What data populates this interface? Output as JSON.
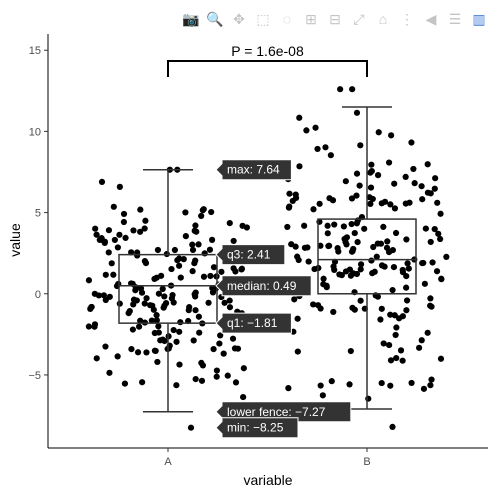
{
  "modebar": {
    "buttons": [
      {
        "name": "camera-icon",
        "glyph": "📷",
        "active": false
      },
      {
        "name": "zoom-icon",
        "glyph": "🔍",
        "active": true
      },
      {
        "name": "pan-icon",
        "glyph": "✥",
        "active": false
      },
      {
        "name": "box-select-icon",
        "glyph": "⬚",
        "active": false
      },
      {
        "name": "lasso-select-icon",
        "glyph": "◌",
        "active": false
      },
      {
        "name": "zoom-in-icon",
        "glyph": "⊞",
        "active": false
      },
      {
        "name": "zoom-out-icon",
        "glyph": "⊟",
        "active": false
      },
      {
        "name": "autoscale-icon",
        "glyph": "⤢",
        "active": false
      },
      {
        "name": "reset-axes-icon",
        "glyph": "⌂",
        "active": false
      },
      {
        "name": "spike-lines-icon",
        "glyph": "⋮",
        "active": false
      },
      {
        "name": "hover-closest-icon",
        "glyph": "◀",
        "active": false
      },
      {
        "name": "hover-compare-icon",
        "glyph": "☰",
        "active": false
      },
      {
        "name": "plotly-logo-icon",
        "glyph": "▥",
        "active": false,
        "brand": true
      }
    ]
  },
  "chart_data": {
    "type": "box",
    "xlabel": "variable",
    "ylabel": "value",
    "categories": [
      "A",
      "B"
    ],
    "ylim": [
      -9.5,
      16
    ],
    "yticks": [
      -5,
      0,
      5,
      10,
      15
    ],
    "annotation": {
      "label": "P = 1.6e-08"
    },
    "boxes": [
      {
        "category": "A",
        "min": -8.25,
        "lower_fence": -7.27,
        "q1": -1.81,
        "median": 0.49,
        "q3": 2.41,
        "upper_fence": 7.64,
        "max": 7.64
      },
      {
        "category": "B",
        "min": -8.2,
        "lower_fence": -7.1,
        "q1": 0.0,
        "median": 2.1,
        "q3": 4.6,
        "upper_fence": 11.5,
        "max": 12.6
      }
    ],
    "hover_labels": [
      {
        "text": "max: 7.64",
        "value": 7.64
      },
      {
        "text": "q3: 2.41",
        "value": 2.41
      },
      {
        "text": "median: 0.49",
        "value": 0.49
      },
      {
        "text": "q1: −1.81",
        "value": -1.81
      },
      {
        "text": "lower fence: −7.27",
        "value": -7.27
      },
      {
        "text": "min: −8.25",
        "value": -8.25
      }
    ],
    "n_points_per_group": 200,
    "point_color": "#000000",
    "box_color": "#333333",
    "hover_bg": "#333333"
  }
}
